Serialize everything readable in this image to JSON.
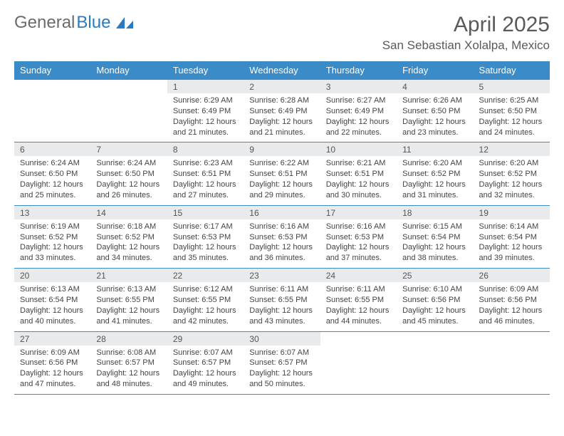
{
  "brand": {
    "part1": "General",
    "part2": "Blue"
  },
  "title": "April 2025",
  "location": "San Sebastian Xolalpa, Mexico",
  "colors": {
    "header_bg": "#3b8bc9",
    "header_text": "#ffffff",
    "daynum_bg": "#e9eaec",
    "border": "#3b8bc9",
    "text": "#444444",
    "brand_gray": "#6b6b6b",
    "brand_blue": "#2b7bbf"
  },
  "weekdays": [
    "Sunday",
    "Monday",
    "Tuesday",
    "Wednesday",
    "Thursday",
    "Friday",
    "Saturday"
  ],
  "weeks": [
    [
      null,
      null,
      {
        "num": "1",
        "sunrise": "6:29 AM",
        "sunset": "6:49 PM",
        "daylight": "12 hours and 21 minutes."
      },
      {
        "num": "2",
        "sunrise": "6:28 AM",
        "sunset": "6:49 PM",
        "daylight": "12 hours and 21 minutes."
      },
      {
        "num": "3",
        "sunrise": "6:27 AM",
        "sunset": "6:49 PM",
        "daylight": "12 hours and 22 minutes."
      },
      {
        "num": "4",
        "sunrise": "6:26 AM",
        "sunset": "6:50 PM",
        "daylight": "12 hours and 23 minutes."
      },
      {
        "num": "5",
        "sunrise": "6:25 AM",
        "sunset": "6:50 PM",
        "daylight": "12 hours and 24 minutes."
      }
    ],
    [
      {
        "num": "6",
        "sunrise": "6:24 AM",
        "sunset": "6:50 PM",
        "daylight": "12 hours and 25 minutes."
      },
      {
        "num": "7",
        "sunrise": "6:24 AM",
        "sunset": "6:50 PM",
        "daylight": "12 hours and 26 minutes."
      },
      {
        "num": "8",
        "sunrise": "6:23 AM",
        "sunset": "6:51 PM",
        "daylight": "12 hours and 27 minutes."
      },
      {
        "num": "9",
        "sunrise": "6:22 AM",
        "sunset": "6:51 PM",
        "daylight": "12 hours and 29 minutes."
      },
      {
        "num": "10",
        "sunrise": "6:21 AM",
        "sunset": "6:51 PM",
        "daylight": "12 hours and 30 minutes."
      },
      {
        "num": "11",
        "sunrise": "6:20 AM",
        "sunset": "6:52 PM",
        "daylight": "12 hours and 31 minutes."
      },
      {
        "num": "12",
        "sunrise": "6:20 AM",
        "sunset": "6:52 PM",
        "daylight": "12 hours and 32 minutes."
      }
    ],
    [
      {
        "num": "13",
        "sunrise": "6:19 AM",
        "sunset": "6:52 PM",
        "daylight": "12 hours and 33 minutes."
      },
      {
        "num": "14",
        "sunrise": "6:18 AM",
        "sunset": "6:52 PM",
        "daylight": "12 hours and 34 minutes."
      },
      {
        "num": "15",
        "sunrise": "6:17 AM",
        "sunset": "6:53 PM",
        "daylight": "12 hours and 35 minutes."
      },
      {
        "num": "16",
        "sunrise": "6:16 AM",
        "sunset": "6:53 PM",
        "daylight": "12 hours and 36 minutes."
      },
      {
        "num": "17",
        "sunrise": "6:16 AM",
        "sunset": "6:53 PM",
        "daylight": "12 hours and 37 minutes."
      },
      {
        "num": "18",
        "sunrise": "6:15 AM",
        "sunset": "6:54 PM",
        "daylight": "12 hours and 38 minutes."
      },
      {
        "num": "19",
        "sunrise": "6:14 AM",
        "sunset": "6:54 PM",
        "daylight": "12 hours and 39 minutes."
      }
    ],
    [
      {
        "num": "20",
        "sunrise": "6:13 AM",
        "sunset": "6:54 PM",
        "daylight": "12 hours and 40 minutes."
      },
      {
        "num": "21",
        "sunrise": "6:13 AM",
        "sunset": "6:55 PM",
        "daylight": "12 hours and 41 minutes."
      },
      {
        "num": "22",
        "sunrise": "6:12 AM",
        "sunset": "6:55 PM",
        "daylight": "12 hours and 42 minutes."
      },
      {
        "num": "23",
        "sunrise": "6:11 AM",
        "sunset": "6:55 PM",
        "daylight": "12 hours and 43 minutes."
      },
      {
        "num": "24",
        "sunrise": "6:11 AM",
        "sunset": "6:55 PM",
        "daylight": "12 hours and 44 minutes."
      },
      {
        "num": "25",
        "sunrise": "6:10 AM",
        "sunset": "6:56 PM",
        "daylight": "12 hours and 45 minutes."
      },
      {
        "num": "26",
        "sunrise": "6:09 AM",
        "sunset": "6:56 PM",
        "daylight": "12 hours and 46 minutes."
      }
    ],
    [
      {
        "num": "27",
        "sunrise": "6:09 AM",
        "sunset": "6:56 PM",
        "daylight": "12 hours and 47 minutes."
      },
      {
        "num": "28",
        "sunrise": "6:08 AM",
        "sunset": "6:57 PM",
        "daylight": "12 hours and 48 minutes."
      },
      {
        "num": "29",
        "sunrise": "6:07 AM",
        "sunset": "6:57 PM",
        "daylight": "12 hours and 49 minutes."
      },
      {
        "num": "30",
        "sunrise": "6:07 AM",
        "sunset": "6:57 PM",
        "daylight": "12 hours and 50 minutes."
      },
      null,
      null,
      null
    ]
  ]
}
